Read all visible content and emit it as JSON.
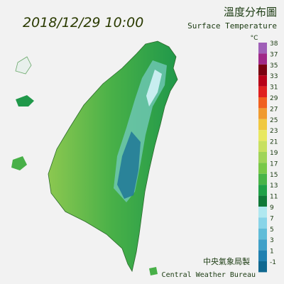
{
  "header": {
    "datetime": "2018/12/29 10:00",
    "title": "溫度分布圖",
    "subtitle": "Surface Temperature"
  },
  "legend": {
    "unit": "°C",
    "ticks": [
      38,
      37,
      35,
      33,
      31,
      29,
      27,
      25,
      23,
      21,
      19,
      17,
      15,
      13,
      11,
      9,
      7,
      5,
      3,
      1,
      -1
    ],
    "colors": [
      "#a060b8",
      "#a02888",
      "#7a0010",
      "#b80018",
      "#e02020",
      "#f06020",
      "#f09a30",
      "#f0c840",
      "#e8e860",
      "#c8e060",
      "#a0d458",
      "#78c848",
      "#48b448",
      "#20a048",
      "#107838",
      "#b0e8f0",
      "#88d4e8",
      "#60bcd8",
      "#40a0c8",
      "#2080b0",
      "#106890"
    ]
  },
  "footer": {
    "agency": "中央氣象局製",
    "agency_en": "Central Weather Bureau"
  }
}
